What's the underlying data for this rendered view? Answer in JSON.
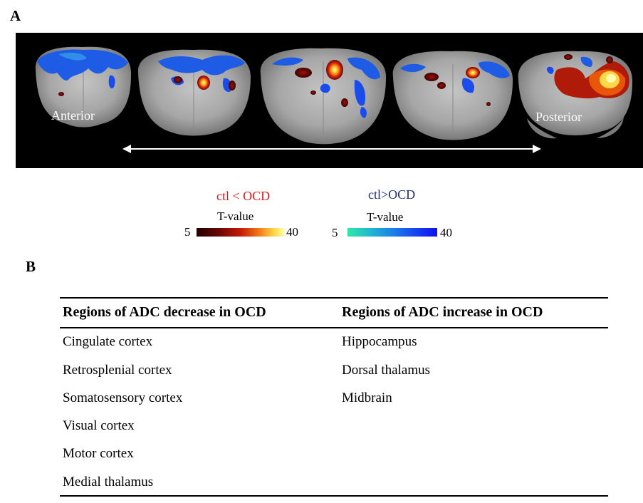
{
  "panel_a": {
    "label": "A",
    "anterior": "Anterior",
    "posterior": "Posterior",
    "legend": {
      "red": {
        "title": "ctl < OCD",
        "subtitle": "T-value",
        "min": "5",
        "max": "40",
        "color": "#d81c1c"
      },
      "blue": {
        "title": "ctl>OCD",
        "subtitle": "T-value",
        "min": "5",
        "max": "40",
        "color": "#1f2f6b"
      }
    }
  },
  "panel_b": {
    "label": "B",
    "headers": [
      "Regions of ADC decrease in OCD",
      "Regions of ADC increase in OCD"
    ],
    "decrease": [
      "Cingulate cortex",
      "Retrosplenial cortex",
      "Somatosensory cortex",
      "Visual cortex",
      "Motor cortex",
      "Medial thalamus"
    ],
    "increase": [
      "Hippocampus",
      "Dorsal thalamus",
      "Midbrain"
    ]
  }
}
